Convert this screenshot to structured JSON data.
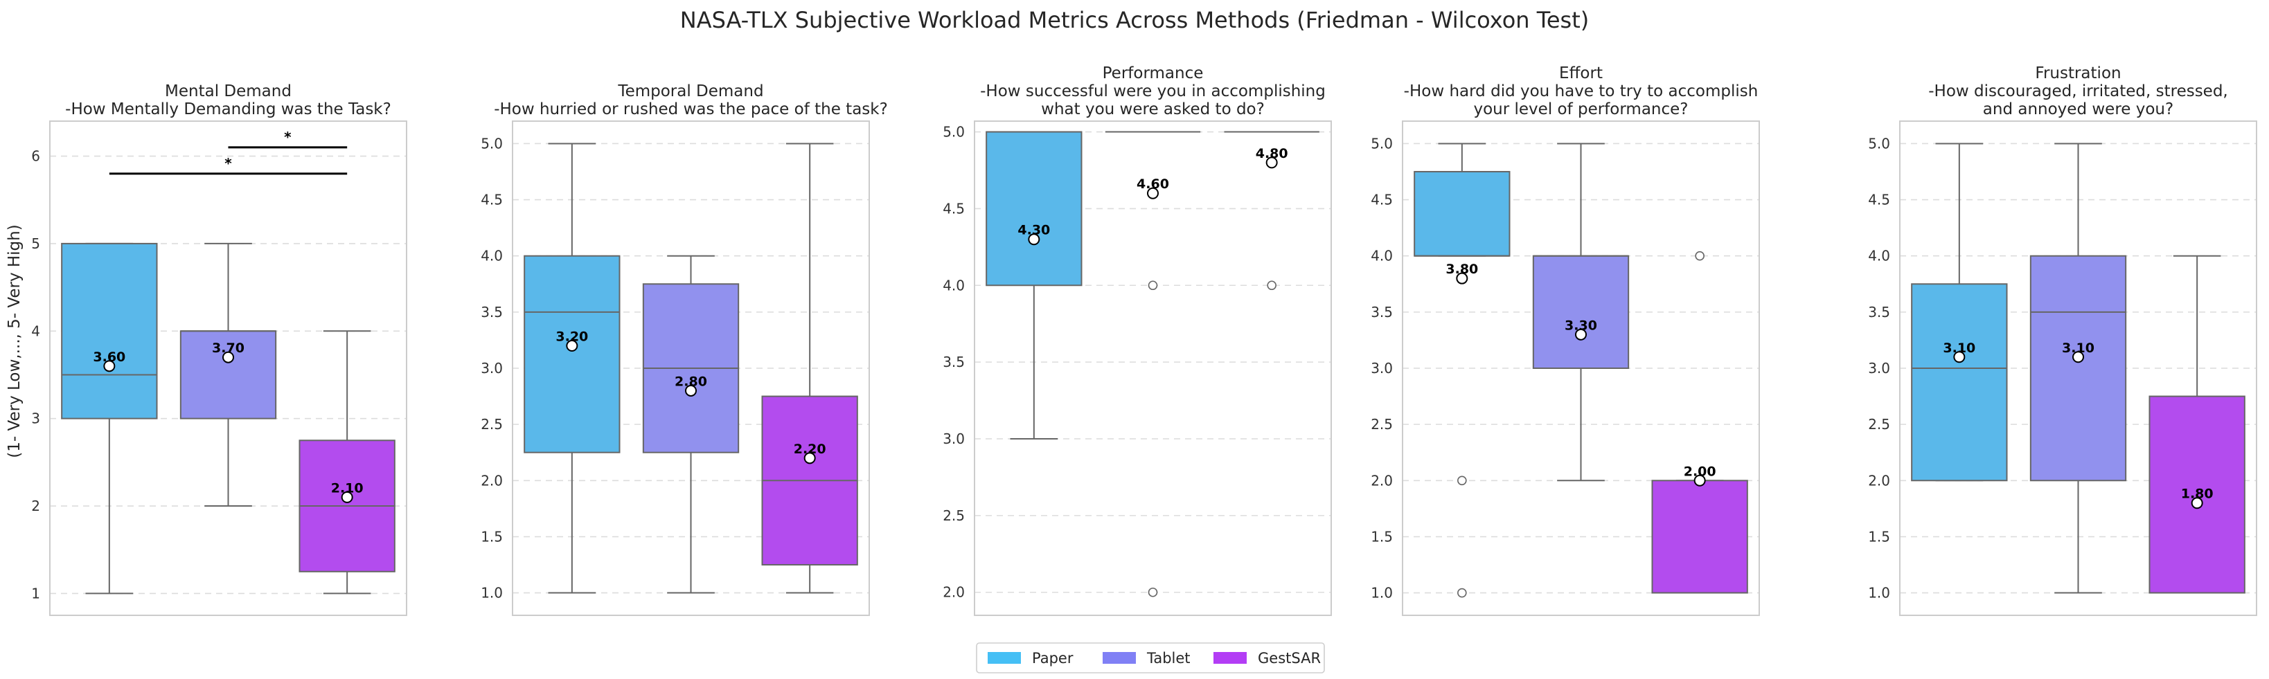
{
  "chart_data": {
    "type": "box",
    "title": "NASA-TLX Subjective Workload Metrics Across Methods (Friedman - Wilcoxon Test)",
    "ylabel": "(1- Very Low,..., 5- Very High)",
    "legend": {
      "placement": "bottom-center",
      "entries": [
        {
          "label": "Paper",
          "color": "#45bff5"
        },
        {
          "label": "Tablet",
          "color": "#8080f5"
        },
        {
          "label": "GestSAR",
          "color": "#b33df5"
        }
      ]
    },
    "colors": {
      "Paper": "#5ab8ea",
      "Tablet": "#9191ee",
      "GestSAR": "#b34cee",
      "grid": "#dcdcdc",
      "whisker": "#666666",
      "frame": "#cccccc"
    },
    "panels": [
      {
        "title": [
          "Mental Demand",
          "-How Mentally Demanding was the Task?"
        ],
        "ylim": [
          0.75,
          6.4
        ],
        "yticks": [
          1,
          2,
          3,
          4,
          5,
          6
        ],
        "ytick_labels": [
          "1",
          "2",
          "3",
          "4",
          "5",
          "6"
        ],
        "boxes": [
          {
            "group": "Paper",
            "whislo": 1,
            "q1": 3,
            "med": 3.5,
            "q3": 5,
            "whishi": 5,
            "mean": 3.6,
            "mean_label": "3.60",
            "fliers": []
          },
          {
            "group": "Tablet",
            "whislo": 2,
            "q1": 3,
            "med": 4,
            "q3": 4,
            "whishi": 5,
            "mean": 3.7,
            "mean_label": "3.70",
            "fliers": []
          },
          {
            "group": "GestSAR",
            "whislo": 1,
            "q1": 1.25,
            "med": 2,
            "q3": 2.75,
            "whishi": 4,
            "mean": 2.1,
            "mean_label": "2.10",
            "fliers": []
          }
        ],
        "significance": [
          {
            "from": 1,
            "to": 2,
            "y": 6.1,
            "label": "*"
          },
          {
            "from": 0,
            "to": 2,
            "y": 5.8,
            "label": "*"
          }
        ]
      },
      {
        "title": [
          "Temporal Demand",
          "-How hurried or rushed was the pace of the task?"
        ],
        "ylim": [
          0.8,
          5.2
        ],
        "yticks": [
          1,
          1.5,
          2,
          2.5,
          3,
          3.5,
          4,
          4.5,
          5
        ],
        "ytick_labels": [
          "1.0",
          "1.5",
          "2.0",
          "2.5",
          "3.0",
          "3.5",
          "4.0",
          "4.5",
          "5.0"
        ],
        "boxes": [
          {
            "group": "Paper",
            "whislo": 1,
            "q1": 2.25,
            "med": 3.5,
            "q3": 4,
            "whishi": 5,
            "mean": 3.2,
            "mean_label": "3.20",
            "fliers": []
          },
          {
            "group": "Tablet",
            "whislo": 1,
            "q1": 2.25,
            "med": 3,
            "q3": 3.75,
            "whishi": 4,
            "mean": 2.8,
            "mean_label": "2.80",
            "fliers": []
          },
          {
            "group": "GestSAR",
            "whislo": 1,
            "q1": 1.25,
            "med": 2,
            "q3": 2.75,
            "whishi": 5,
            "mean": 2.2,
            "mean_label": "2.20",
            "fliers": []
          }
        ],
        "significance": []
      },
      {
        "title": [
          "Performance",
          "-How successful were you in accomplishing",
          "what you were asked to do?"
        ],
        "ylim": [
          1.85,
          5.07
        ],
        "yticks": [
          2,
          2.5,
          3,
          3.5,
          4,
          4.5,
          5
        ],
        "ytick_labels": [
          "2.0",
          "2.5",
          "3.0",
          "3.5",
          "4.0",
          "4.5",
          "5.0"
        ],
        "boxes": [
          {
            "group": "Paper",
            "whislo": 3,
            "q1": 4,
            "med": 5,
            "q3": 5,
            "whishi": 5,
            "mean": 4.3,
            "mean_label": "4.30",
            "fliers": []
          },
          {
            "group": "Tablet",
            "whislo": 5,
            "q1": 5,
            "med": 5,
            "q3": 5,
            "whishi": 5,
            "mean": 4.6,
            "mean_label": "4.60",
            "fliers": [
              4,
              2
            ]
          },
          {
            "group": "GestSAR",
            "whislo": 5,
            "q1": 5,
            "med": 5,
            "q3": 5,
            "whishi": 5,
            "mean": 4.8,
            "mean_label": "4.80",
            "fliers": [
              4
            ]
          }
        ],
        "significance": []
      },
      {
        "title": [
          "Effort",
          "-How hard did you have to try to accomplish",
          "your level of performance?"
        ],
        "ylim": [
          0.8,
          5.2
        ],
        "yticks": [
          1,
          1.5,
          2,
          2.5,
          3,
          3.5,
          4,
          4.5,
          5
        ],
        "ytick_labels": [
          "1.0",
          "1.5",
          "2.0",
          "2.5",
          "3.0",
          "3.5",
          "4.0",
          "4.5",
          "5.0"
        ],
        "boxes": [
          {
            "group": "Paper",
            "whislo": 4,
            "q1": 4,
            "med": 4,
            "q3": 4.75,
            "whishi": 5,
            "mean": 3.8,
            "mean_label": "3.80",
            "fliers": [
              2,
              1
            ]
          },
          {
            "group": "Tablet",
            "whislo": 2,
            "q1": 3,
            "med": 4,
            "q3": 4,
            "whishi": 5,
            "mean": 3.3,
            "mean_label": "3.30",
            "fliers": []
          },
          {
            "group": "GestSAR",
            "whislo": 1,
            "q1": 1,
            "med": 1,
            "q3": 2,
            "whishi": 2,
            "mean": 2.0,
            "mean_label": "2.00",
            "fliers": [
              4
            ]
          }
        ],
        "significance": []
      },
      {
        "title": [
          "Frustration",
          "-How discouraged, irritated, stressed,",
          "and annoyed were you?"
        ],
        "ylim": [
          0.8,
          5.2
        ],
        "yticks": [
          1,
          1.5,
          2,
          2.5,
          3,
          3.5,
          4,
          4.5,
          5
        ],
        "ytick_labels": [
          "1.0",
          "1.5",
          "2.0",
          "2.5",
          "3.0",
          "3.5",
          "4.0",
          "4.5",
          "5.0"
        ],
        "boxes": [
          {
            "group": "Paper",
            "whislo": 2,
            "q1": 2,
            "med": 3,
            "q3": 3.75,
            "whishi": 5,
            "mean": 3.1,
            "mean_label": "3.10",
            "fliers": []
          },
          {
            "group": "Tablet",
            "whislo": 1,
            "q1": 2,
            "med": 3.5,
            "q3": 4,
            "whishi": 5,
            "mean": 3.1,
            "mean_label": "3.10",
            "fliers": []
          },
          {
            "group": "GestSAR",
            "whislo": 1,
            "q1": 1,
            "med": 1,
            "q3": 2.75,
            "whishi": 4,
            "mean": 1.8,
            "mean_label": "1.80",
            "fliers": []
          }
        ],
        "significance": []
      }
    ]
  }
}
